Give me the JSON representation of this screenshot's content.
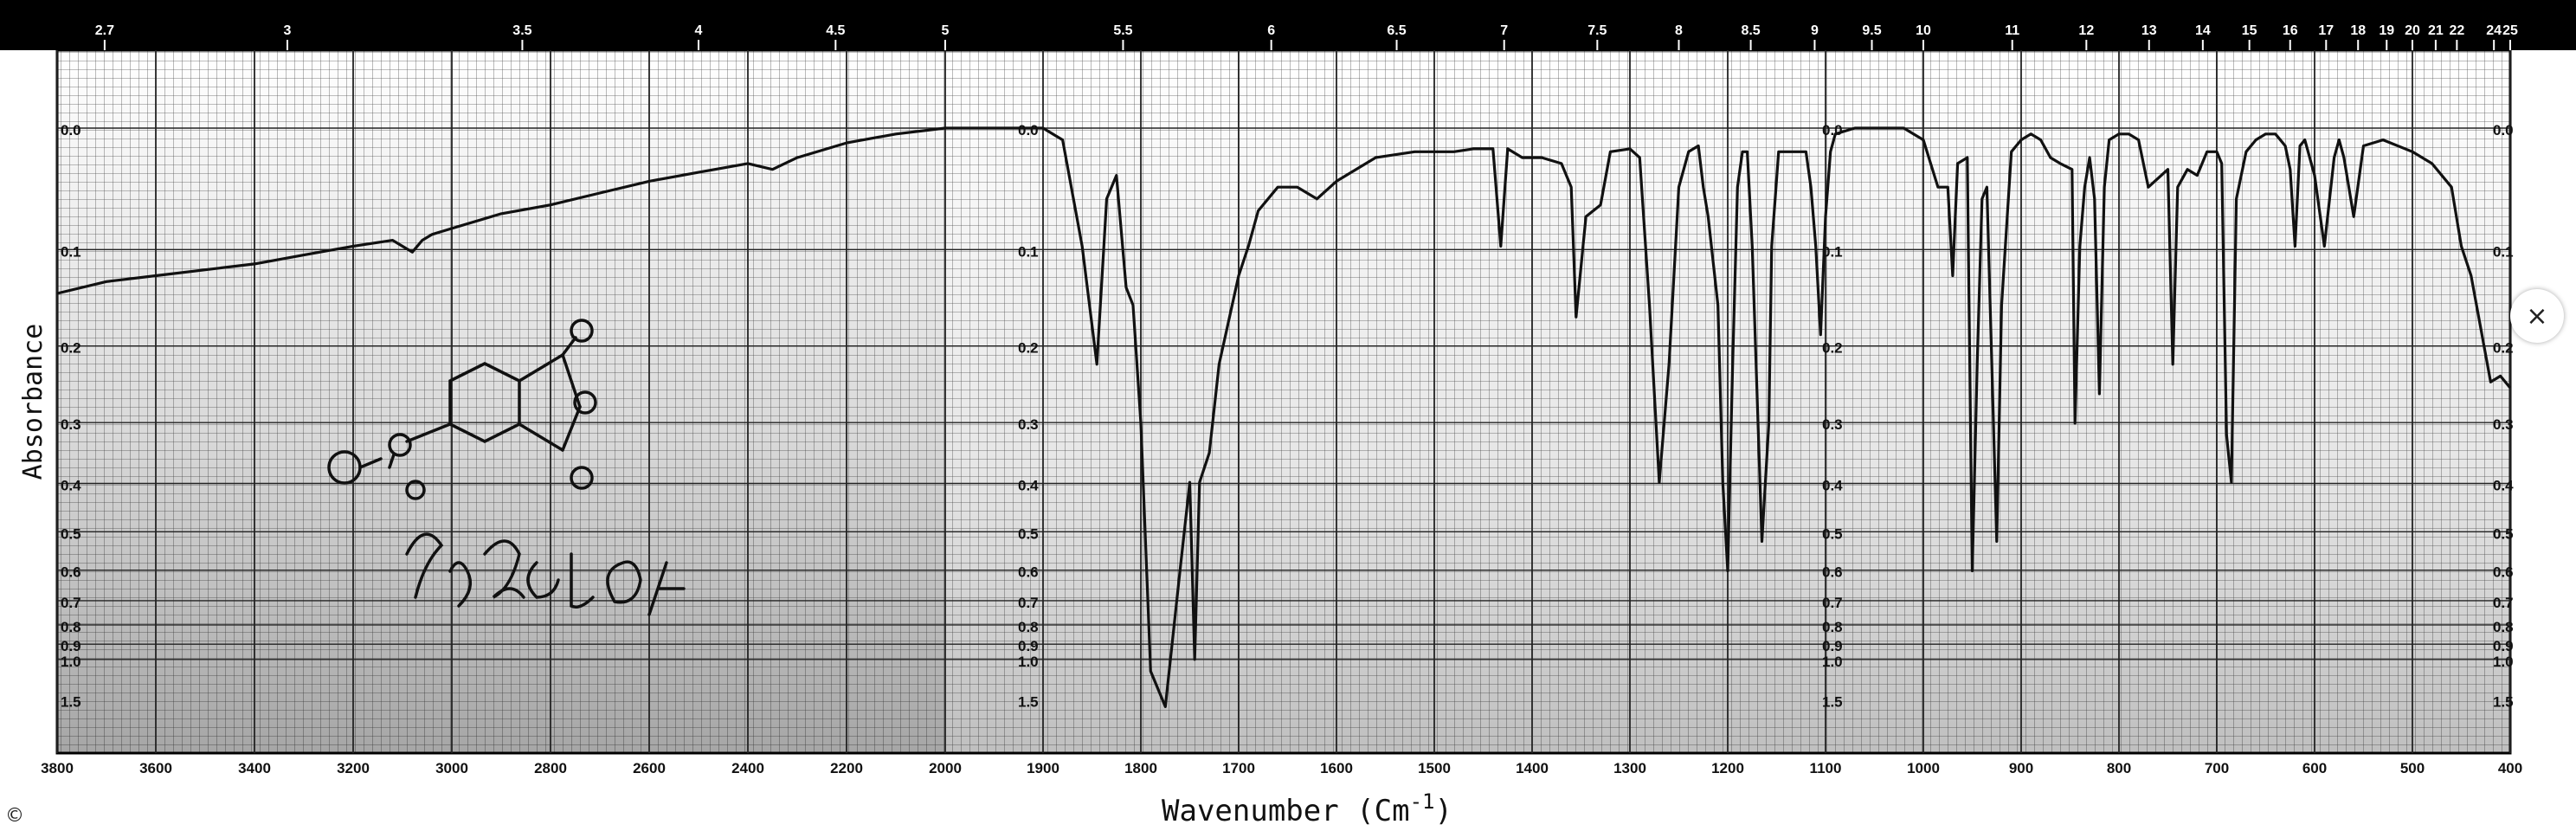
{
  "chart_data": {
    "type": "line",
    "xlabel": "Wavenumber (Cm",
    "xlabel_superscript": "-1",
    "xlabel_suffix": ")",
    "ylabel": "Absorbance",
    "x_scale": "piecewise-linear, reversed (4000-2000 and 2000-400 at double scale)",
    "xlim": [
      3800,
      400
    ],
    "ylim_log_reference": [
      0.0,
      1.5
    ],
    "x_ticks": [
      3800,
      3600,
      3400,
      3200,
      3000,
      2800,
      2600,
      2400,
      2200,
      2000,
      1900,
      1800,
      1700,
      1600,
      1500,
      1400,
      1300,
      1200,
      1100,
      1000,
      900,
      800,
      700,
      600,
      500,
      400
    ],
    "wavelength_ticks_um": [
      2.7,
      3.0,
      3.5,
      4.0,
      4.5,
      5.0,
      5.5,
      6.0,
      6.5,
      7.0,
      7.5,
      8.0,
      8.5,
      9.0,
      9.5,
      10,
      11,
      12,
      13,
      14,
      15,
      16,
      17,
      18,
      19,
      20,
      21,
      22,
      24,
      25
    ],
    "absorbance_tick_labels": [
      "0.0",
      "0.1",
      "0.2",
      "0.3",
      "0.4",
      "0.5",
      "0.6",
      "0.7",
      "0.8",
      "0.9",
      "1.0",
      "1.5"
    ],
    "grid": true,
    "series": [
      {
        "color": "#111111",
        "x": [
          3800,
          3700,
          3600,
          3500,
          3400,
          3300,
          3200,
          3120,
          3080,
          3060,
          3040,
          3000,
          2900,
          2800,
          2700,
          2600,
          2500,
          2400,
          2350,
          2300,
          2200,
          2100,
          2000,
          1950,
          1900,
          1880,
          1860,
          1845,
          1835,
          1825,
          1815,
          1808,
          1800,
          1790,
          1775,
          1760,
          1750,
          1745,
          1740,
          1730,
          1720,
          1700,
          1690,
          1680,
          1660,
          1640,
          1620,
          1600,
          1580,
          1560,
          1540,
          1520,
          1500,
          1480,
          1460,
          1440,
          1432,
          1425,
          1410,
          1390,
          1370,
          1360,
          1355,
          1345,
          1330,
          1320,
          1300,
          1290,
          1280,
          1270,
          1260,
          1250,
          1240,
          1230,
          1225,
          1220,
          1210,
          1205,
          1200,
          1195,
          1190,
          1185,
          1180,
          1175,
          1165,
          1158,
          1155,
          1148,
          1140,
          1130,
          1120,
          1115,
          1110,
          1105,
          1100,
          1095,
          1090,
          1080,
          1070,
          1060,
          1050,
          1040,
          1020,
          1000,
          985,
          975,
          970,
          965,
          955,
          950,
          945,
          940,
          935,
          925,
          920,
          910,
          900,
          890,
          880,
          870,
          860,
          848,
          845,
          840,
          835,
          830,
          825,
          820,
          815,
          810,
          800,
          790,
          780,
          770,
          750,
          745,
          740,
          730,
          720,
          710,
          700,
          695,
          690,
          685,
          680,
          670,
          660,
          650,
          640,
          630,
          625,
          620,
          615,
          610,
          600,
          590,
          580,
          575,
          570,
          560,
          550,
          530,
          500,
          480,
          460,
          450,
          440,
          430,
          420,
          410,
          400
        ],
        "y_transmittance_percent": [
          72,
          74,
          75,
          76,
          77,
          78.5,
          80,
          81,
          79,
          81,
          82,
          83,
          85.5,
          87,
          89,
          91,
          92.5,
          94,
          93,
          95,
          97.5,
          99,
          100,
          100,
          100,
          98,
          80,
          60,
          88,
          92,
          73,
          70,
          50,
          8,
          2,
          25,
          40,
          10,
          40,
          45,
          60,
          75,
          80,
          86,
          90,
          90,
          88,
          91,
          93,
          95,
          95.5,
          96,
          96,
          96,
          96.5,
          96.5,
          80,
          96.5,
          95,
          95,
          94,
          90,
          68,
          85,
          87,
          96,
          96.5,
          95,
          70,
          40,
          60,
          90,
          96,
          97,
          90,
          85,
          70,
          40,
          25,
          60,
          90,
          96,
          96,
          80,
          30,
          50,
          80,
          96,
          96,
          96,
          96,
          90,
          80,
          65,
          85,
          96,
          99,
          99.5,
          100,
          100,
          100,
          100,
          100,
          98,
          90,
          90,
          75,
          94,
          95,
          25,
          60,
          88,
          90,
          30,
          70,
          96,
          98,
          99,
          98,
          95,
          94,
          93,
          50,
          80,
          90,
          95,
          88,
          55,
          90,
          98,
          99,
          99,
          98,
          90,
          93,
          60,
          90,
          93,
          92,
          96,
          96,
          94,
          48,
          40,
          88,
          96,
          98,
          99,
          99,
          97,
          93,
          80,
          97,
          98,
          92,
          80,
          95,
          98,
          95,
          85,
          97,
          98,
          96,
          94,
          90,
          80,
          75,
          66,
          57,
          58,
          56
        ]
      }
    ],
    "annotations": {
      "handwritten_formula": "C9H3ClO4",
      "copyright": "©"
    }
  },
  "ui": {
    "close_label": "×"
  }
}
